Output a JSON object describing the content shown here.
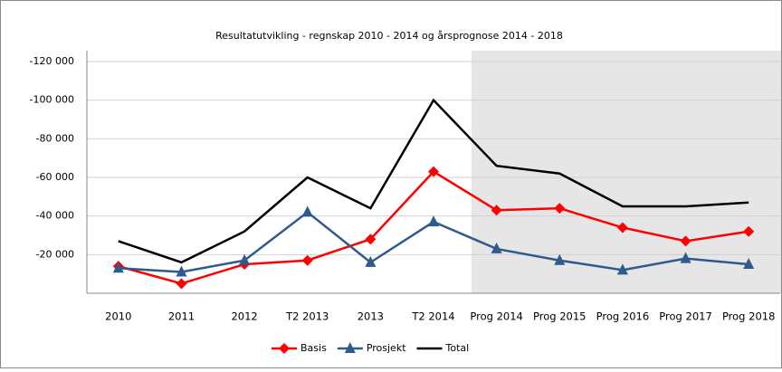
{
  "chart_data": {
    "type": "line",
    "title": "Resultatutvikling  -  regnskap  2010 - 2014 og årsprognose  2014 - 2018",
    "categories": [
      "2010",
      "2011",
      "2012",
      "T2 2013",
      "2013",
      "T2 2014",
      "Prog 2014",
      "Prog 2015",
      "Prog 2016",
      "Prog 2017",
      "Prog 2018"
    ],
    "series": [
      {
        "name": "Basis",
        "color": "#ff0000",
        "marker": "diamond",
        "values": [
          -14000,
          -5000,
          -15000,
          -17000,
          -28000,
          -63000,
          -43000,
          -44000,
          -34000,
          -27000,
          -32000
        ]
      },
      {
        "name": "Prosjekt",
        "color": "#2e5a8c",
        "marker": "triangle",
        "values": [
          -13000,
          -11000,
          -17000,
          -42000,
          -16000,
          -37000,
          -23000,
          -17000,
          -12000,
          -18000,
          -15000
        ]
      },
      {
        "name": "Total",
        "color": "#000000",
        "marker": "none",
        "values": [
          -27000,
          -16000,
          -32000,
          -60000,
          -44000,
          -100000,
          -66000,
          -62000,
          -45000,
          -45000,
          -47000
        ]
      }
    ],
    "ylim": [
      0,
      -120000
    ],
    "yticks": [
      {
        "value": -120000,
        "label": "-120 000"
      },
      {
        "value": -100000,
        "label": "-100 000"
      },
      {
        "value": -80000,
        "label": "-80 000"
      },
      {
        "value": -60000,
        "label": "-60 000"
      },
      {
        "value": -40000,
        "label": "-40 000"
      },
      {
        "value": -20000,
        "label": "-20 000"
      }
    ],
    "grid": true,
    "legend": "bottom"
  }
}
